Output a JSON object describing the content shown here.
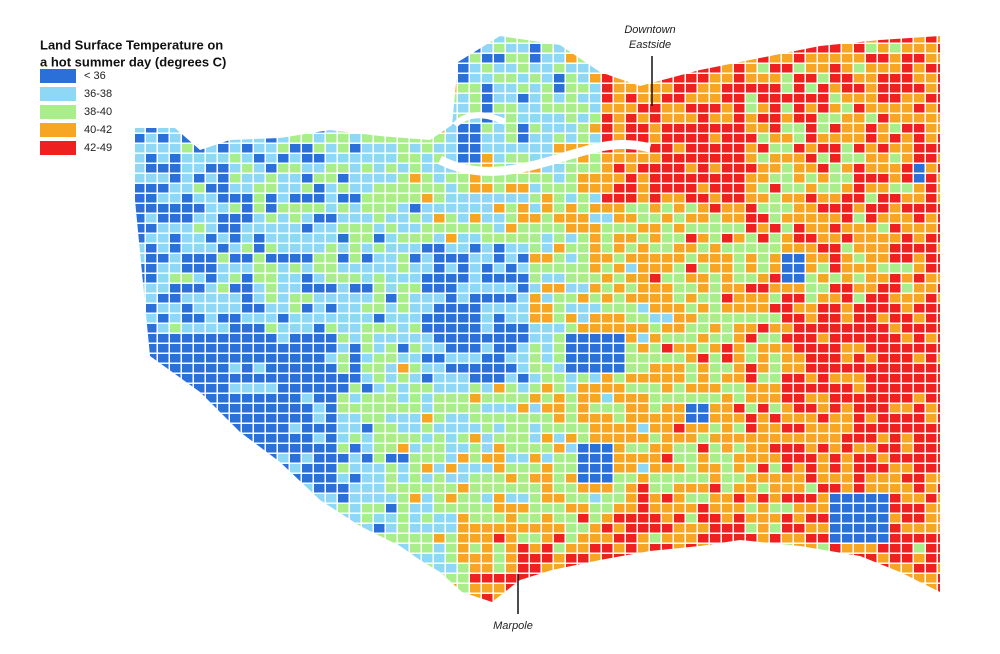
{
  "legend": {
    "title_lines": [
      "Land Surface Temperature on",
      "a hot summer day (degrees C)"
    ],
    "items": [
      {
        "label": "< 36",
        "color": "#2b6fd9"
      },
      {
        "label": "36-38",
        "color": "#8fd8f5"
      },
      {
        "label": "38-40",
        "color": "#a9ee8a"
      },
      {
        "label": "40-42",
        "color": "#f6a623"
      },
      {
        "label": "42-49",
        "color": "#ee2020"
      }
    ]
  },
  "annotations": [
    {
      "lines": [
        "Downtown",
        "Eastside"
      ]
    },
    {
      "lines": [
        "Marpole"
      ]
    }
  ]
}
